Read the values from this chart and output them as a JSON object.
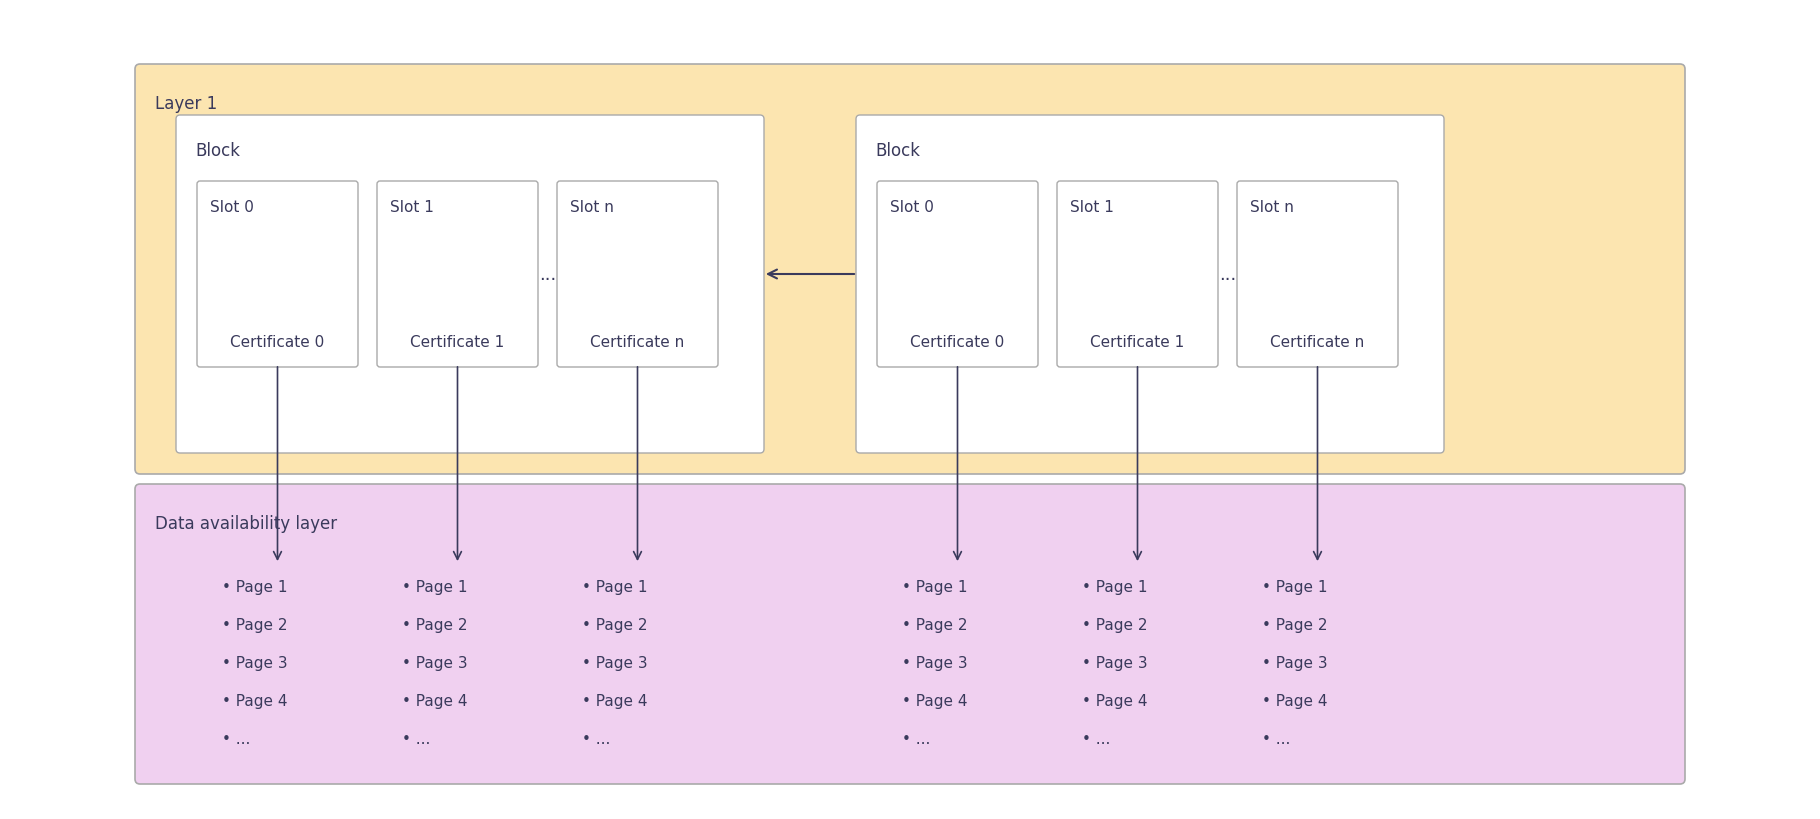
{
  "fig_width": 18.2,
  "fig_height": 8.2,
  "dpi": 100,
  "bg_color": "#ffffff",
  "layer1_color": "#fce5b0",
  "dal_color": "#f0d0f0",
  "block_bg": "#ffffff",
  "slot_bg": "#ffffff",
  "border_color": "#aaaaaa",
  "text_color": "#3a3a5c",
  "layer1_label": "Layer 1",
  "dal_label": "Data availability layer",
  "block_label": "Block",
  "slot_labels": [
    "Slot 0",
    "Slot 1",
    "Slot n"
  ],
  "cert_labels": [
    "Certificate 0",
    "Certificate 1",
    "Certificate n"
  ],
  "ellipsis": "...",
  "page_items": [
    "• Page 1",
    "• Page 2",
    "• Page 3",
    "• Page 4",
    "• ..."
  ],
  "font_size_label": 12,
  "font_size_slot": 11,
  "font_size_cert": 11,
  "font_size_pages": 11,
  "font_size_ellipsis": 13
}
